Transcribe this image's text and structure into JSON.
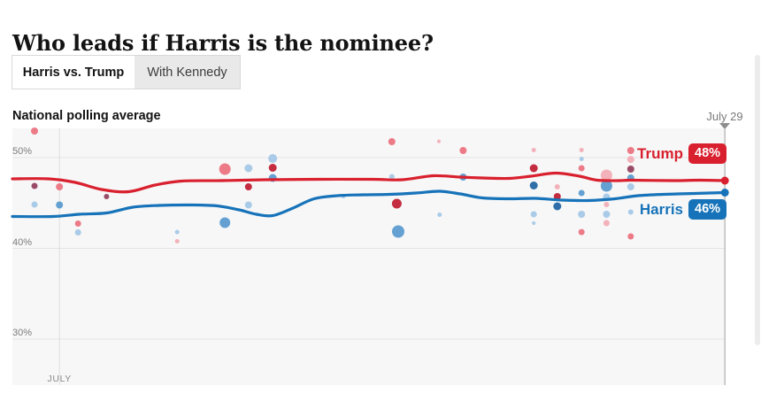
{
  "page": {
    "title": "Who leads if Harris is the nominee?"
  },
  "tabs": [
    {
      "label": "Harris vs. Trump",
      "active": true
    },
    {
      "label": "With Kennedy",
      "active": false
    }
  ],
  "chart_header": {
    "label": "National polling average",
    "date_marker": "July 29"
  },
  "chart_data": {
    "type": "line",
    "title": "National polling average",
    "xlabel": "",
    "ylabel": "percent",
    "ylim": [
      25,
      53.2
    ],
    "grid": true,
    "x_axis": {
      "month_label": "JULY",
      "month_frac": 0.066,
      "marker_label": "July 29",
      "marker_frac": 0.999
    },
    "y_axis": {
      "ticks": [
        {
          "label": "50%",
          "value": 50
        },
        {
          "label": "40%",
          "value": 40
        },
        {
          "label": "30%",
          "value": 30
        }
      ]
    },
    "series": [
      {
        "name": "Trump",
        "value_label": "48%",
        "color": "#d9202e",
        "points": [
          [
            0.0,
            47.66
          ],
          [
            0.051,
            47.66
          ],
          [
            0.088,
            47.27
          ],
          [
            0.125,
            46.49
          ],
          [
            0.163,
            46.24
          ],
          [
            0.2,
            46.98
          ],
          [
            0.237,
            47.41
          ],
          [
            0.293,
            47.46
          ],
          [
            0.355,
            47.56
          ],
          [
            0.429,
            47.61
          ],
          [
            0.504,
            47.61
          ],
          [
            0.547,
            47.56
          ],
          [
            0.59,
            48.0
          ],
          [
            0.628,
            47.85
          ],
          [
            0.659,
            47.76
          ],
          [
            0.696,
            47.71
          ],
          [
            0.727,
            47.95
          ],
          [
            0.762,
            48.29
          ],
          [
            0.795,
            47.95
          ],
          [
            0.82,
            47.51
          ],
          [
            0.851,
            47.46
          ],
          [
            0.867,
            47.51
          ],
          [
            0.926,
            47.46
          ],
          [
            0.963,
            47.51
          ],
          [
            0.999,
            47.46
          ]
        ]
      },
      {
        "name": "Harris",
        "value_label": "46%",
        "color": "#1773b9",
        "points": [
          [
            0.0,
            43.51
          ],
          [
            0.057,
            43.51
          ],
          [
            0.094,
            43.76
          ],
          [
            0.132,
            43.9
          ],
          [
            0.169,
            44.54
          ],
          [
            0.206,
            44.73
          ],
          [
            0.249,
            44.78
          ],
          [
            0.287,
            44.68
          ],
          [
            0.318,
            44.24
          ],
          [
            0.342,
            43.76
          ],
          [
            0.365,
            43.61
          ],
          [
            0.392,
            44.39
          ],
          [
            0.423,
            45.46
          ],
          [
            0.454,
            45.8
          ],
          [
            0.491,
            45.9
          ],
          [
            0.529,
            45.95
          ],
          [
            0.566,
            46.1
          ],
          [
            0.599,
            46.29
          ],
          [
            0.628,
            46.0
          ],
          [
            0.659,
            45.56
          ],
          [
            0.696,
            45.46
          ],
          [
            0.733,
            45.51
          ],
          [
            0.771,
            45.32
          ],
          [
            0.808,
            45.27
          ],
          [
            0.845,
            45.46
          ],
          [
            0.876,
            45.8
          ],
          [
            0.913,
            45.95
          ],
          [
            0.957,
            46.05
          ],
          [
            0.999,
            46.15
          ]
        ]
      }
    ],
    "dot_colors": {
      "rl": "#f3b1ba",
      "rm": "#ec7b87",
      "rd": "#c42c40",
      "mr": "#9a4b67",
      "bl": "#a9cbe7",
      "bm": "#64a1d2",
      "bd": "#2f6ea9"
    },
    "scatter": [
      [
        0.031,
        52.93,
        4,
        "rm"
      ],
      [
        0.031,
        46.88,
        3.5,
        "mr"
      ],
      [
        0.031,
        44.83,
        3.5,
        "bl"
      ],
      [
        0.066,
        46.78,
        4,
        "rm"
      ],
      [
        0.066,
        44.78,
        4,
        "bm"
      ],
      [
        0.092,
        42.73,
        3.5,
        "rm"
      ],
      [
        0.092,
        41.76,
        3.5,
        "bl"
      ],
      [
        0.132,
        45.71,
        3,
        "mr"
      ],
      [
        0.231,
        41.8,
        2.5,
        "bl"
      ],
      [
        0.231,
        40.78,
        2.5,
        "rl"
      ],
      [
        0.298,
        48.73,
        6.5,
        "rm"
      ],
      [
        0.298,
        42.83,
        6,
        "bm"
      ],
      [
        0.331,
        48.83,
        4.5,
        "bl"
      ],
      [
        0.331,
        46.78,
        4,
        "rd"
      ],
      [
        0.331,
        44.78,
        4,
        "bl"
      ],
      [
        0.365,
        49.9,
        5,
        "bl"
      ],
      [
        0.365,
        48.88,
        4.5,
        "rd"
      ],
      [
        0.365,
        47.76,
        4.5,
        "bm"
      ],
      [
        0.464,
        45.76,
        2.5,
        "bl"
      ],
      [
        0.532,
        51.76,
        4,
        "rm"
      ],
      [
        0.532,
        47.9,
        3,
        "bl"
      ],
      [
        0.539,
        44.93,
        5.5,
        "rd"
      ],
      [
        0.541,
        41.85,
        7,
        "bm"
      ],
      [
        0.598,
        51.8,
        2,
        "rl"
      ],
      [
        0.599,
        43.71,
        2.5,
        "bl"
      ],
      [
        0.632,
        50.78,
        4,
        "rm"
      ],
      [
        0.632,
        47.85,
        4,
        "bm"
      ],
      [
        0.731,
        50.83,
        2.5,
        "rl"
      ],
      [
        0.731,
        48.83,
        4.5,
        "rd"
      ],
      [
        0.731,
        46.93,
        4.5,
        "bd"
      ],
      [
        0.731,
        43.76,
        3.5,
        "bl"
      ],
      [
        0.731,
        42.78,
        2,
        "bl"
      ],
      [
        0.764,
        46.78,
        3,
        "rl"
      ],
      [
        0.764,
        45.71,
        4,
        "rd"
      ],
      [
        0.764,
        44.63,
        4.5,
        "bd"
      ],
      [
        0.798,
        50.83,
        2.5,
        "rl"
      ],
      [
        0.798,
        49.85,
        2.5,
        "bl"
      ],
      [
        0.798,
        48.83,
        3.5,
        "rm"
      ],
      [
        0.798,
        46.1,
        3.5,
        "bm"
      ],
      [
        0.798,
        43.76,
        4,
        "bl"
      ],
      [
        0.798,
        41.8,
        3.5,
        "rm"
      ],
      [
        0.833,
        48.05,
        6.5,
        "rl"
      ],
      [
        0.833,
        46.88,
        6.5,
        "bm"
      ],
      [
        0.833,
        45.66,
        4,
        "bl"
      ],
      [
        0.833,
        44.83,
        3,
        "rl"
      ],
      [
        0.833,
        43.76,
        4,
        "bl"
      ],
      [
        0.833,
        42.78,
        3.5,
        "rl"
      ],
      [
        0.867,
        50.78,
        4,
        "rm"
      ],
      [
        0.867,
        49.8,
        4,
        "rl"
      ],
      [
        0.867,
        48.73,
        4,
        "mr"
      ],
      [
        0.867,
        47.76,
        4,
        "bm"
      ],
      [
        0.867,
        46.78,
        4,
        "bl"
      ],
      [
        0.867,
        44.0,
        3,
        "bl"
      ],
      [
        0.867,
        41.32,
        3.5,
        "rm"
      ]
    ],
    "colors": {
      "grid": "#e4e4e4",
      "month_line": "#dedede",
      "marker_line": "#bdbdbd",
      "plot_bg": "#f7f7f7"
    }
  }
}
